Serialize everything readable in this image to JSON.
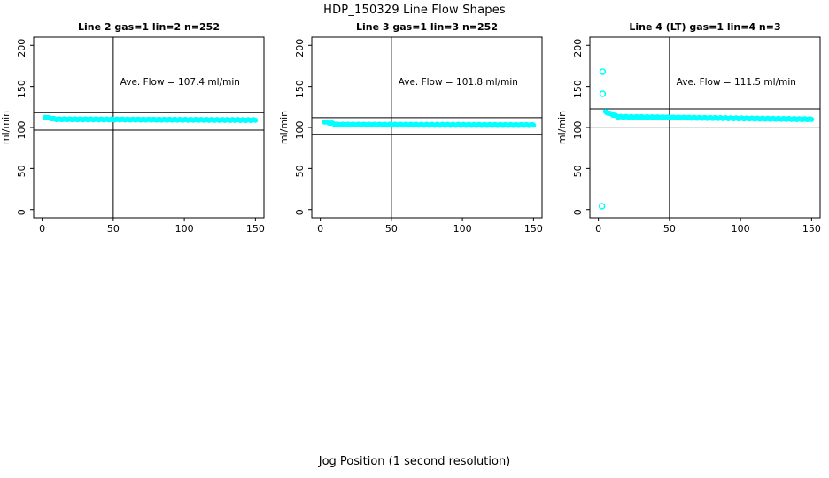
{
  "page": {
    "title": "HDP_150329  Line Flow Shapes",
    "xlabel": "Jog Position (1 second resolution)"
  },
  "chart_data": {
    "type": "scatter",
    "title": "HDP_150329  Line Flow Shapes",
    "xlabel": "Jog Position (1 second resolution)",
    "ylabel": "ml/min",
    "x_ticks": [
      0,
      50,
      100,
      150
    ],
    "y_ticks": [
      0,
      50,
      100,
      150,
      200
    ],
    "xlim": [
      -6,
      156
    ],
    "ylim": [
      -10,
      210
    ],
    "grid": false,
    "point_color": "#00ffff",
    "line_color": "#000000",
    "panels": [
      {
        "title": "Line 2 gas=1 lin=2 n=252",
        "annotation": "Ave. Flow =  107.4  ml/min",
        "ave_flow_ml_min": 107.4,
        "n": 252,
        "vline_x": 50,
        "hlines": [
          118.1,
          96.7
        ],
        "annotation_xy": [
          97,
          152
        ],
        "segments": [
          {
            "x_from": 2,
            "x_to": 10,
            "y_from": 112.5,
            "y_to": 110,
            "step": 0.5
          },
          {
            "x_from": 10,
            "x_to": 150,
            "y_from": 110,
            "y_to": 109,
            "step": 0.5
          }
        ],
        "outliers": []
      },
      {
        "title": "Line 3 gas=1 lin=3 n=252",
        "annotation": "Ave. Flow =  101.8  ml/min",
        "ave_flow_ml_min": 101.8,
        "n": 252,
        "vline_x": 50,
        "hlines": [
          112.0,
          91.6
        ],
        "annotation_xy": [
          97,
          152
        ],
        "segments": [
          {
            "x_from": 3,
            "x_to": 12,
            "y_from": 107,
            "y_to": 103.5,
            "step": 0.5
          },
          {
            "x_from": 12,
            "x_to": 150,
            "y_from": 103.5,
            "y_to": 103,
            "step": 0.5
          }
        ],
        "outliers": []
      },
      {
        "title": "Line 4 (LT) gas=1 lin=4 n=3",
        "annotation": "Ave. Flow =  111.5  ml/min",
        "ave_flow_ml_min": 111.5,
        "n": 3,
        "vline_x": 50,
        "hlines": [
          122.7,
          100.4
        ],
        "annotation_xy": [
          97,
          152
        ],
        "segments": [
          {
            "x_from": 5,
            "x_to": 14,
            "y_from": 119,
            "y_to": 113,
            "step": 0.5
          },
          {
            "x_from": 14,
            "x_to": 150,
            "y_from": 113,
            "y_to": 110,
            "step": 0.5
          }
        ],
        "outliers": [
          [
            3,
            168
          ],
          [
            3,
            141
          ],
          [
            2.5,
            4
          ]
        ]
      }
    ]
  }
}
